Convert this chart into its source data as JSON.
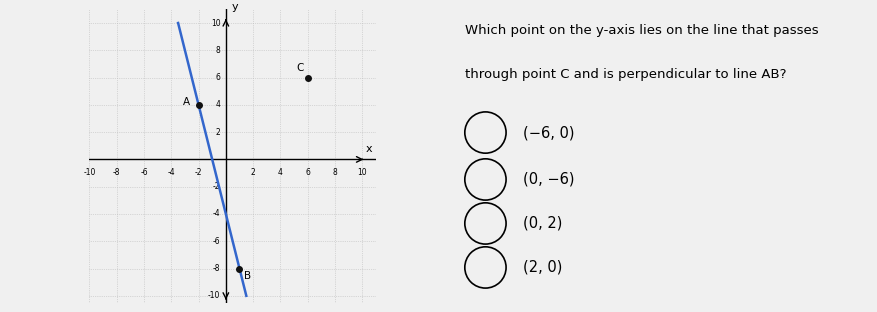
{
  "point_A": [
    -2,
    4
  ],
  "point_B": [
    1,
    -8
  ],
  "point_C": [
    6,
    6
  ],
  "axis_lim": [
    -10,
    10
  ],
  "grid_color": "#bbbbbb",
  "line_color": "#3366cc",
  "point_color": "#111111",
  "background_color": "#f0f0f0",
  "question_text_line1": "Which point on the y-axis lies on the line that passes",
  "question_text_line2": "through point C and is perpendicular to line AB?",
  "choices": [
    "(−6, 0)",
    "(0, −6)",
    "(0, 2)",
    "(2, 0)"
  ],
  "axis_tick_step": 2,
  "fig_width": 8.78,
  "fig_height": 3.12,
  "dpi": 100
}
